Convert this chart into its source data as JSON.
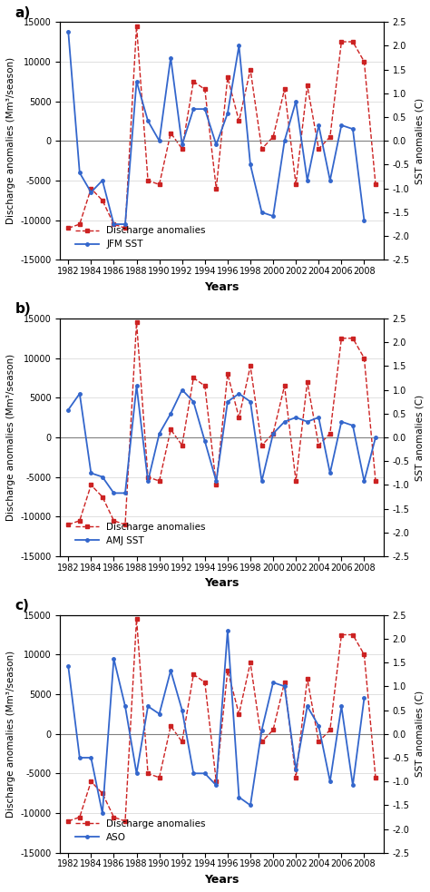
{
  "years": [
    1982,
    1983,
    1984,
    1985,
    1986,
    1987,
    1988,
    1989,
    1990,
    1991,
    1992,
    1993,
    1994,
    1995,
    1996,
    1997,
    1998,
    1999,
    2000,
    2001,
    2002,
    2003,
    2004,
    2005,
    2006,
    2007,
    2008,
    2009
  ],
  "discharge": [
    -11000,
    -10500,
    -6000,
    -7500,
    -10500,
    -11000,
    14500,
    -5000,
    -5500,
    1000,
    -1000,
    7500,
    6500,
    -6000,
    8000,
    2500,
    9000,
    -1000,
    500,
    6500,
    -5500,
    7000,
    -1000,
    500,
    12500,
    12500,
    10000,
    -5500
  ],
  "jfm_sst": [
    2.3,
    -0.67,
    -1.08,
    -0.83,
    -1.75,
    -1.75,
    1.25,
    0.42,
    0.0,
    1.75,
    -0.08,
    0.67,
    0.67,
    -0.08,
    0.58,
    2.0,
    -0.5,
    -1.5,
    -1.58,
    0.0,
    0.83,
    -0.83,
    0.33,
    -0.83,
    0.33,
    0.25,
    -1.67,
    null
  ],
  "amj_sst": [
    0.58,
    0.92,
    -0.75,
    -0.83,
    -1.17,
    -1.17,
    1.08,
    -0.92,
    0.08,
    0.5,
    1.0,
    0.75,
    -0.08,
    -0.92,
    0.75,
    0.92,
    0.75,
    -0.92,
    0.08,
    0.33,
    0.42,
    0.33,
    0.42,
    -0.75,
    0.33,
    0.25,
    -0.92,
    0.0
  ],
  "aso_sst": [
    1.42,
    -0.5,
    -0.5,
    -1.67,
    1.58,
    0.58,
    -0.83,
    0.58,
    0.42,
    1.33,
    0.5,
    -0.83,
    -0.83,
    -1.08,
    2.17,
    -1.33,
    -1.5,
    0.08,
    1.08,
    1.0,
    -0.75,
    0.58,
    0.17,
    -1.0,
    0.58,
    -1.08,
    0.75,
    null
  ],
  "panel_labels": [
    "a)",
    "b)",
    "c)"
  ],
  "sst_labels": [
    "JFM SST",
    "AMJ SST",
    "ASO"
  ],
  "discharge_color": "#cc2222",
  "sst_color": "#3366cc",
  "ylim_discharge": [
    -15000,
    15000
  ],
  "ylim_sst": [
    -2.5,
    2.5
  ],
  "yticks_discharge": [
    -15000,
    -10000,
    -5000,
    0,
    5000,
    10000,
    15000
  ],
  "yticks_sst": [
    -2.5,
    -2.0,
    -1.5,
    -1.0,
    -0.5,
    0.0,
    0.5,
    1.0,
    1.5,
    2.0,
    2.5
  ],
  "xticks": [
    1982,
    1984,
    1986,
    1988,
    1990,
    1992,
    1994,
    1996,
    1998,
    2000,
    2002,
    2004,
    2006,
    2008
  ],
  "xlabel": "Years",
  "ylabel_left": "Discharge anomalies (Mm³/season)",
  "ylabel_right": "SST anomalies (C)",
  "legend_discharge": "Discharge anomalies",
  "background_color": "#ffffff"
}
